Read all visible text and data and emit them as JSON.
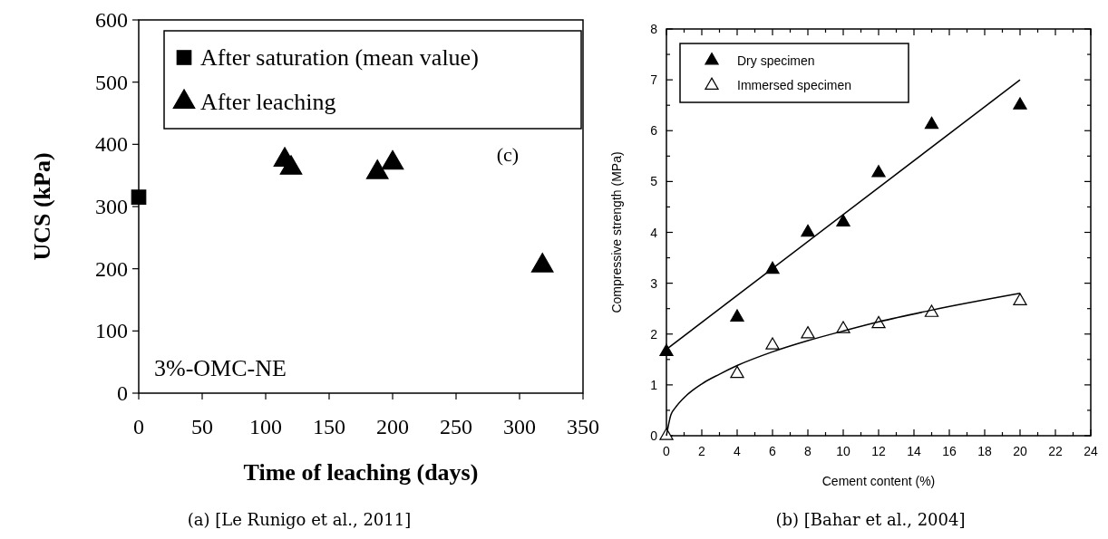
{
  "chart_data": [
    {
      "type": "scatter",
      "xlabel": "Time of leaching (days)",
      "ylabel": "UCS (kPa)",
      "xlim": [
        0,
        350
      ],
      "ylim": [
        0,
        600
      ],
      "xticks": [
        0,
        50,
        100,
        150,
        200,
        250,
        300,
        350
      ],
      "yticks": [
        0,
        100,
        200,
        300,
        400,
        500,
        600
      ],
      "grid": false,
      "legend": "top left",
      "annotations": [
        "(c)",
        "3%-OMC-NE",
        "(a) [Le Runigo et al., 2011]"
      ],
      "series": [
        {
          "name": "After saturation (mean value)",
          "color": "#000000",
          "marker": "square",
          "x": [
            0
          ],
          "values": [
            315
          ]
        },
        {
          "name": "After leaching",
          "color": "#000000",
          "marker": "triangle",
          "x": [
            115,
            120,
            188,
            200,
            318
          ],
          "values": [
            375,
            362,
            355,
            370,
            205
          ]
        }
      ]
    },
    {
      "type": "scatter",
      "xlabel": "Cement content (%)",
      "ylabel": "Compressive strength (MPa)",
      "xlim": [
        0,
        24
      ],
      "ylim": [
        0,
        8
      ],
      "xticks": [
        0,
        {
          "value": 1,
          "label": null
        },
        2,
        {
          "value": 3,
          "label": null
        },
        4,
        {
          "value": 5,
          "label": null
        },
        6,
        {
          "value": 7,
          "label": null
        },
        8,
        {
          "value": 9,
          "label": null
        },
        10,
        {
          "value": 11,
          "label": null
        },
        12,
        {
          "value": 13,
          "label": null
        },
        14,
        {
          "value": 15,
          "label": null
        },
        16,
        {
          "value": 17,
          "label": null
        },
        18,
        {
          "value": 19,
          "label": null
        },
        20,
        {
          "value": 21,
          "label": null
        },
        22,
        {
          "value": 23,
          "label": null
        },
        24
      ],
      "yticks": [
        0,
        {
          "value": 0.5,
          "label": null
        },
        1,
        {
          "value": 1.5,
          "label": null
        },
        2,
        {
          "value": 2.5,
          "label": null
        },
        3,
        {
          "value": 3.5,
          "label": null
        },
        4,
        {
          "value": 4.5,
          "label": null
        },
        5,
        {
          "value": 5.5,
          "label": null
        },
        6,
        {
          "value": 6.5,
          "label": null
        },
        7,
        {
          "value": 7.5,
          "label": null
        },
        8
      ],
      "grid": false,
      "legend": "top left",
      "annotations": [
        "(b) [Bahar et al., 2004]"
      ],
      "series": [
        {
          "name": "Dry specimen",
          "color": "#000000",
          "marker": "triangle",
          "x": [
            0,
            4,
            6,
            8,
            10,
            12,
            15,
            20
          ],
          "values": [
            1.65,
            2.33,
            3.27,
            4.0,
            4.2,
            5.17,
            6.12,
            6.5
          ]
        },
        {
          "name": "Immersed specimen",
          "color": "#ffffff",
          "marker": "triangle",
          "x": [
            0,
            4,
            6,
            8,
            10,
            12,
            15,
            20
          ],
          "values": [
            0,
            1.22,
            1.78,
            2.0,
            2.1,
            2.2,
            2.42,
            2.65
          ]
        },
        {
          "type": "line",
          "color": "#000000",
          "line_style": "solid",
          "x": [
            0,
            20
          ],
          "values": [
            1.7,
            7.0
          ]
        },
        {
          "type": "line",
          "color": "#000000",
          "line_style": "solid",
          "x": [
            0,
            0.25,
            0.5,
            1,
            2,
            3,
            4,
            6,
            8,
            10,
            12,
            15,
            20
          ],
          "values": [
            0,
            0.41,
            0.55,
            0.75,
            1.02,
            1.21,
            1.38,
            1.65,
            1.87,
            2.06,
            2.24,
            2.47,
            2.8
          ]
        }
      ]
    }
  ]
}
